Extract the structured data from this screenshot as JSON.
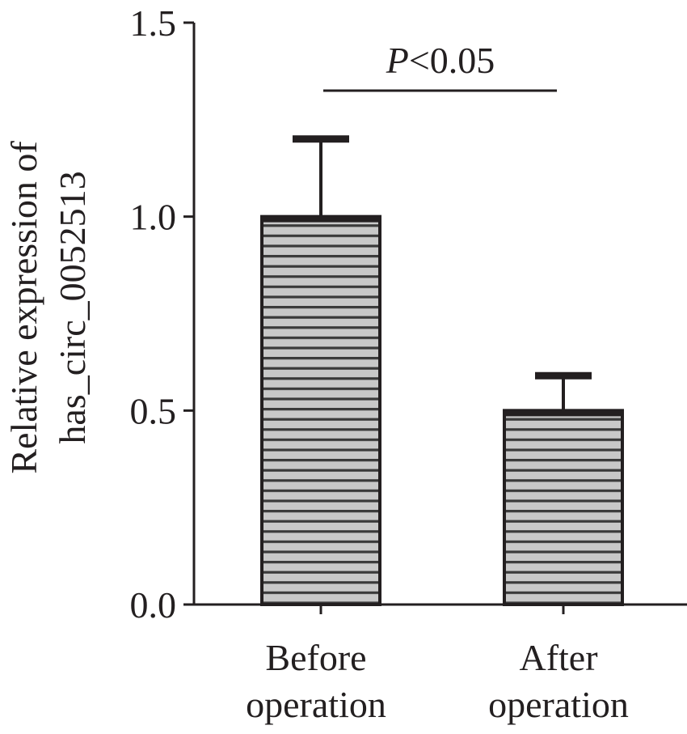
{
  "chart_data": {
    "type": "bar",
    "title": "",
    "xlabel": "",
    "ylabel_lines": [
      "Relative expression of",
      "has_circ_0052513"
    ],
    "categories": [
      {
        "lines": [
          "Before",
          "operation"
        ]
      },
      {
        "lines": [
          "After",
          "operation"
        ]
      }
    ],
    "values": [
      1.0,
      0.5
    ],
    "error_upper": [
      1.2,
      0.59
    ],
    "ylim": [
      0,
      1.5
    ],
    "yticks": [
      {
        "value": 0,
        "label": "0.0"
      },
      {
        "value": 0.5,
        "label": "0.5"
      },
      {
        "value": 1.0,
        "label": "1.0"
      },
      {
        "value": 1.5,
        "label": "1.5"
      }
    ],
    "annotation": {
      "italic": "P",
      "rest": "<0.05",
      "between": [
        0,
        1
      ]
    },
    "colors": {
      "axis": "#231f20",
      "bar_fill": "#c8c8c8",
      "bar_stripe": "#3a3a3a"
    }
  }
}
